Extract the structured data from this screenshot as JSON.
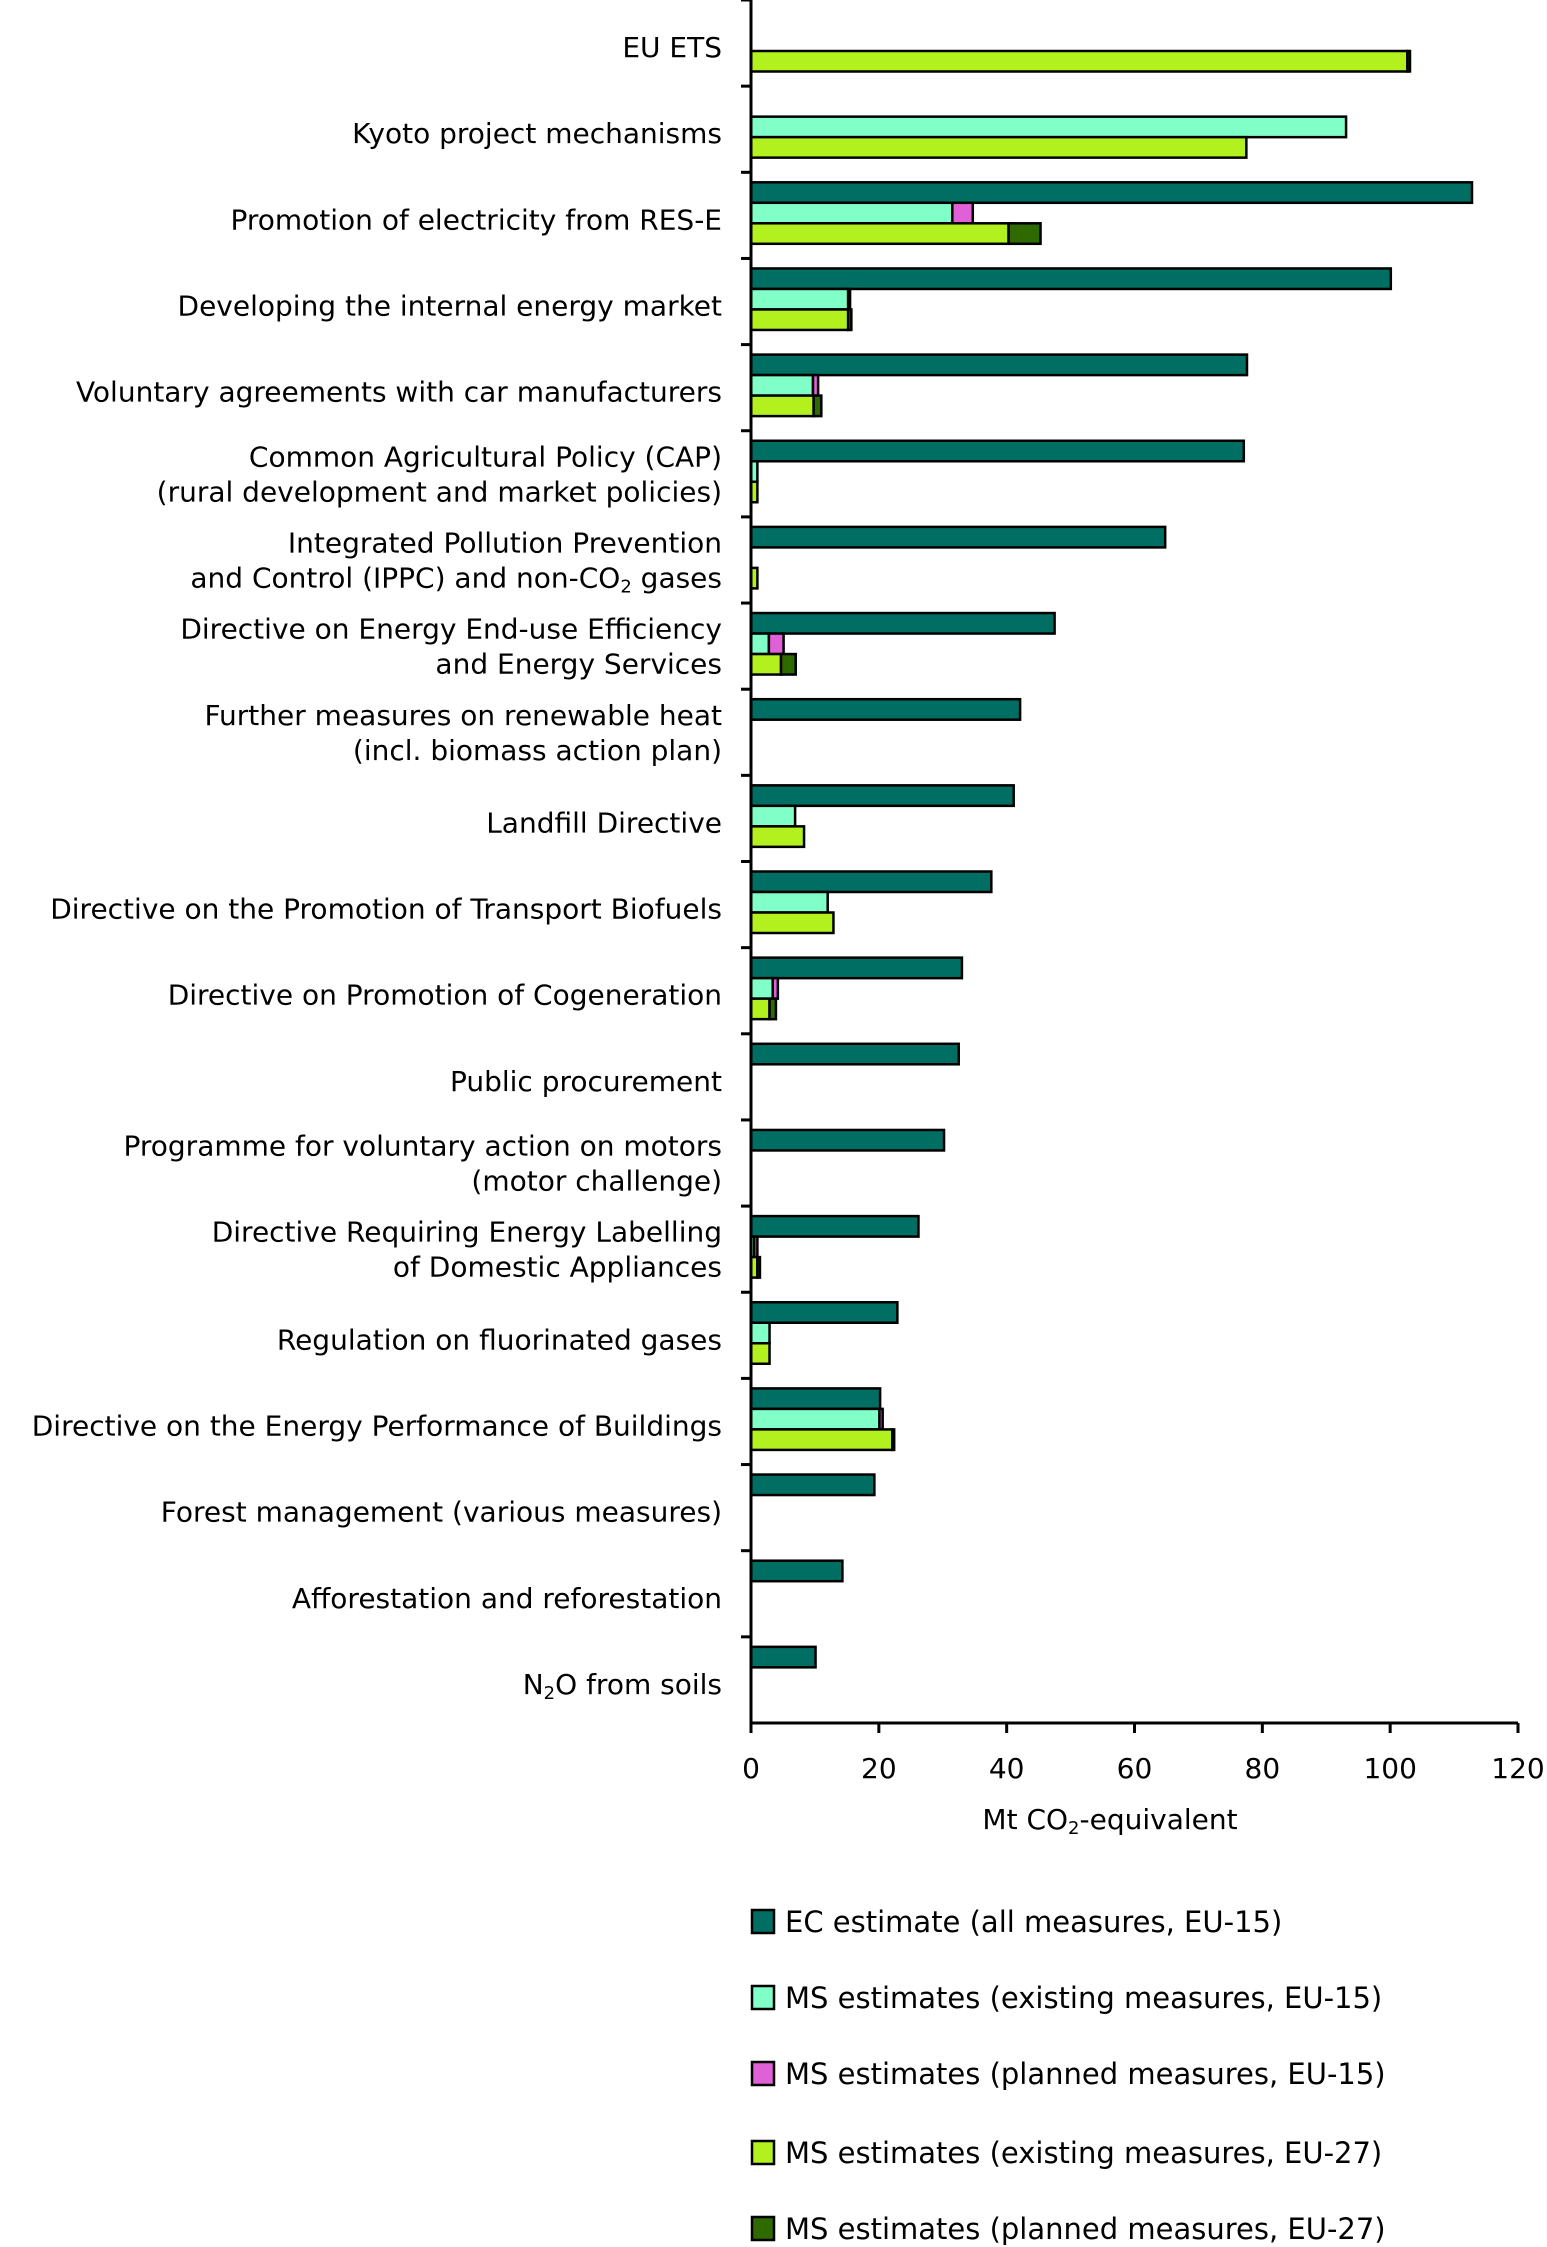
{
  "chart_data": {
    "type": "bar",
    "orientation": "horizontal",
    "stacked_pairs": true,
    "categories": [
      [
        [
          "EU ETS"
        ]
      ],
      [
        [
          "Kyoto project mechanisms"
        ]
      ],
      [
        [
          "Promotion of electricity from RES-E"
        ]
      ],
      [
        [
          "Developing the internal energy market"
        ]
      ],
      [
        [
          "Voluntary agreements with car manufacturers"
        ]
      ],
      [
        [
          "Common Agricultural Policy (CAP)"
        ],
        [
          "(rural development and market policies)"
        ]
      ],
      [
        [
          "Integrated Pollution Prevention"
        ],
        [
          "and Control (IPPC) and non-CO",
          "2",
          " gases"
        ]
      ],
      [
        [
          "Directive on Energy End-use Efficiency"
        ],
        [
          "and Energy Services"
        ]
      ],
      [
        [
          "Further measures on renewable heat"
        ],
        [
          "(incl. biomass action plan)"
        ]
      ],
      [
        [
          "Landfill Directive"
        ]
      ],
      [
        [
          "Directive on the Promotion of Transport Biofuels"
        ]
      ],
      [
        [
          "Directive on Promotion of Cogeneration"
        ]
      ],
      [
        [
          "Public procurement"
        ]
      ],
      [
        [
          "Programme for voluntary action on motors"
        ],
        [
          "(motor challenge)"
        ]
      ],
      [
        [
          "Directive Requiring Energy Labelling"
        ],
        [
          "of Domestic Appliances"
        ]
      ],
      [
        [
          "Regulation on fluorinated gases"
        ]
      ],
      [
        [
          "Directive on the Energy Performance of Buildings"
        ]
      ],
      [
        [
          "Forest management (various measures)"
        ]
      ],
      [
        [
          "Afforestation and reforestation"
        ]
      ],
      [
        [
          "N",
          "2",
          "O from soils"
        ]
      ]
    ],
    "series": [
      {
        "name": "EC estimate (all measures, EU-15)",
        "color": "#006e62",
        "values": [
          null,
          null,
          112.8,
          100.1,
          77.6,
          77.1,
          64.8,
          47.5,
          42.1,
          41.1,
          37.6,
          33.0,
          32.5,
          30.2,
          26.2,
          22.9,
          20.2,
          19.3,
          14.3,
          10.1
        ]
      },
      {
        "name": "MS estimates (existing measures, EU-15)",
        "color": "#80ffc8",
        "values": [
          null,
          93.1,
          31.5,
          15.2,
          9.7,
          1.0,
          null,
          2.8,
          null,
          6.9,
          12.0,
          3.4,
          null,
          null,
          0.5,
          2.9,
          20.1,
          null,
          null,
          null
        ]
      },
      {
        "name": "MS estimates (planned measures, EU-15)",
        "color": "#e060d8",
        "values": [
          null,
          null,
          3.2,
          0.3,
          0.8,
          null,
          null,
          2.3,
          null,
          null,
          null,
          0.8,
          null,
          null,
          0.5,
          null,
          0.5,
          null,
          null,
          null
        ]
      },
      {
        "name": "MS estimates (existing measures, EU-27)",
        "color": "#b2f01e",
        "values": [
          102.7,
          77.5,
          40.3,
          15.2,
          9.8,
          1.0,
          1.0,
          4.7,
          null,
          8.3,
          12.9,
          2.9,
          null,
          null,
          1.0,
          2.9,
          22.1,
          null,
          null,
          null
        ]
      },
      {
        "name": "MS estimates (planned measures, EU-27)",
        "color": "#2e6a00",
        "values": [
          0.4,
          null,
          5.0,
          0.5,
          1.2,
          null,
          null,
          2.3,
          null,
          null,
          null,
          1.0,
          null,
          null,
          0.4,
          null,
          0.3,
          null,
          null,
          null
        ]
      }
    ],
    "xlabel": [
      "Mt CO",
      "2",
      "-equivalent"
    ],
    "xlim": [
      0,
      120
    ],
    "xticks": [
      "0",
      "20",
      "40",
      "60",
      "80",
      "100",
      "120"
    ],
    "grid": false,
    "legend_position": "bottom"
  }
}
